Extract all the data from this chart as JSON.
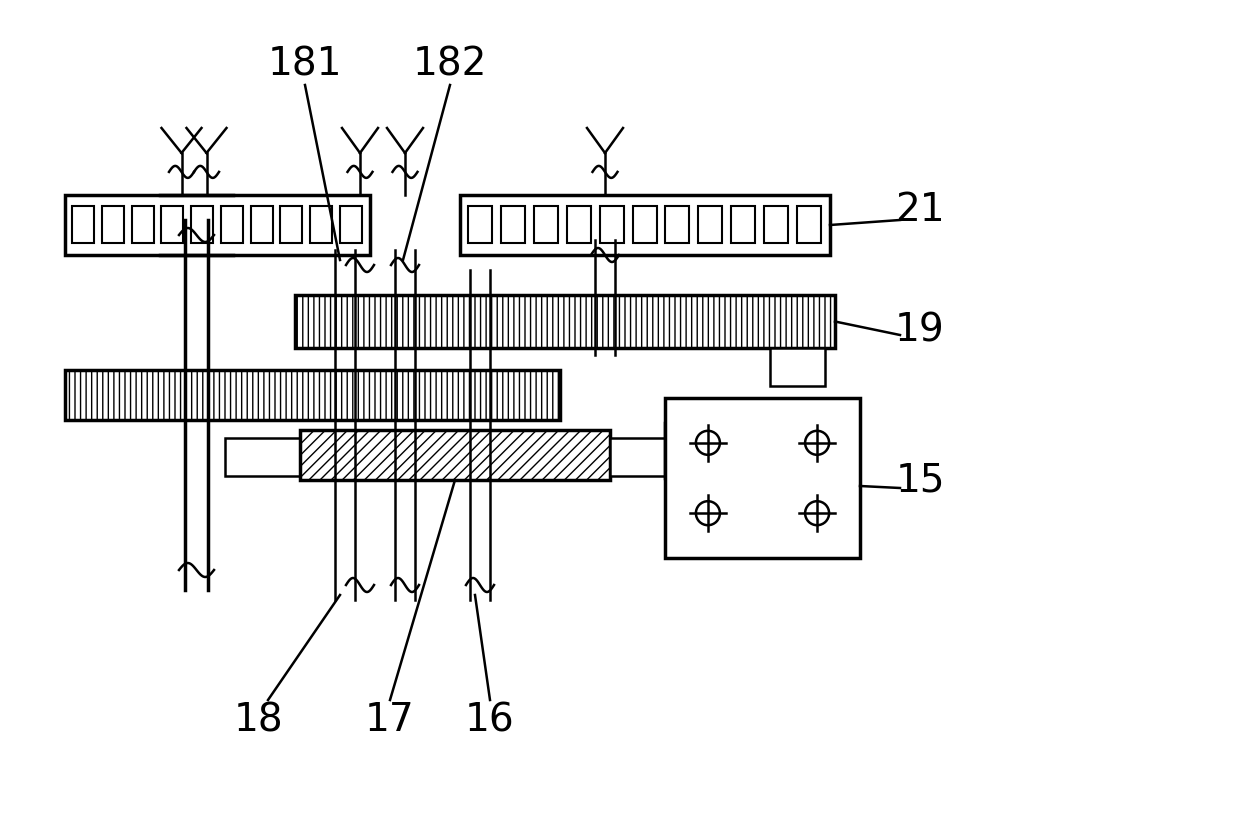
{
  "bg_color": "#ffffff",
  "line_color": "#000000",
  "lw": 1.8,
  "tlw": 2.5,
  "fig_width": 12.4,
  "fig_height": 8.18,
  "label_fontsize": 28
}
